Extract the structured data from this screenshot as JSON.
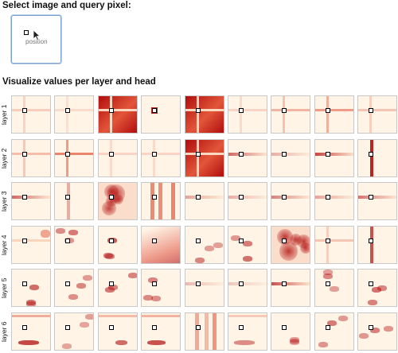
{
  "sections": {
    "select_heading": "Select image and query pixel:",
    "visualize_heading": "Visualize values per layer and head"
  },
  "input_image": {
    "label": "position"
  },
  "layers": [
    {
      "label": "layer 1",
      "heads": [
        {
          "style": "cross",
          "intensity": 0.25
        },
        {
          "style": "cross",
          "intensity": 0.15
        },
        {
          "style": "full",
          "intensity": 1.0
        },
        {
          "style": "dot",
          "intensity": 0.2
        },
        {
          "style": "full",
          "intensity": 1.0
        },
        {
          "style": "cross",
          "intensity": 0.2
        },
        {
          "style": "cross",
          "intensity": 0.4
        },
        {
          "style": "cross",
          "intensity": 0.55
        },
        {
          "style": "cross",
          "intensity": 0.3
        }
      ]
    },
    {
      "label": "layer 2",
      "heads": [
        {
          "style": "cross",
          "intensity": 0.35
        },
        {
          "style": "cross",
          "intensity": 0.7
        },
        {
          "style": "cross",
          "intensity": 0.2
        },
        {
          "style": "cross",
          "intensity": 0.2
        },
        {
          "style": "full",
          "intensity": 0.95
        },
        {
          "style": "hline",
          "intensity": 0.6
        },
        {
          "style": "hline",
          "intensity": 0.3
        },
        {
          "style": "hline",
          "intensity": 0.75
        },
        {
          "style": "vline",
          "intensity": 0.9
        }
      ]
    },
    {
      "label": "layer 3",
      "heads": [
        {
          "style": "hline",
          "intensity": 0.6
        },
        {
          "style": "vline",
          "intensity": 0.3
        },
        {
          "style": "blobs",
          "intensity": 0.75
        },
        {
          "style": "vbars",
          "intensity": 0.8
        },
        {
          "style": "hline",
          "intensity": 0.35
        },
        {
          "style": "hline",
          "intensity": 0.3
        },
        {
          "style": "hline",
          "intensity": 0.5
        },
        {
          "style": "hline",
          "intensity": 0.35
        },
        {
          "style": "hline",
          "intensity": 0.55
        }
      ]
    },
    {
      "label": "layer 4",
      "heads": [
        {
          "style": "corner",
          "intensity": 0.5
        },
        {
          "style": "spots",
          "intensity": 0.6
        },
        {
          "style": "spots",
          "intensity": 0.7
        },
        {
          "style": "gradient",
          "intensity": 0.6
        },
        {
          "style": "spots",
          "intensity": 0.6
        },
        {
          "style": "spots",
          "intensity": 0.6
        },
        {
          "style": "blobs",
          "intensity": 0.8
        },
        {
          "style": "cross",
          "intensity": 0.3
        },
        {
          "style": "vline",
          "intensity": 0.7
        }
      ]
    },
    {
      "label": "layer 5",
      "heads": [
        {
          "style": "spots",
          "intensity": 0.6
        },
        {
          "style": "spots",
          "intensity": 0.6
        },
        {
          "style": "spots",
          "intensity": 0.75
        },
        {
          "style": "spots",
          "intensity": 0.6
        },
        {
          "style": "hline",
          "intensity": 0.25
        },
        {
          "style": "hline",
          "intensity": 0.2
        },
        {
          "style": "hline",
          "intensity": 0.7
        },
        {
          "style": "spots",
          "intensity": 0.55
        },
        {
          "style": "spots",
          "intensity": 0.65
        }
      ]
    },
    {
      "label": "layer 6",
      "heads": [
        {
          "style": "bottom",
          "intensity": 0.75
        },
        {
          "style": "spots",
          "intensity": 0.5
        },
        {
          "style": "bottom",
          "intensity": 0.6
        },
        {
          "style": "bottom",
          "intensity": 0.7
        },
        {
          "style": "vbars",
          "intensity": 0.6
        },
        {
          "style": "bottom",
          "intensity": 0.45
        },
        {
          "style": "spots",
          "intensity": 0.4
        },
        {
          "style": "spots",
          "intensity": 0.55
        },
        {
          "style": "spots",
          "intensity": 0.6
        }
      ]
    }
  ],
  "colors": {
    "cell_background": "#fff4e6",
    "heat_max": "#b10d0d",
    "heat_mid": "#e2563a",
    "heat_low": "#f6c8a8",
    "cell_border": "#c8c8c8",
    "selected_border": "#7aa1d2"
  }
}
